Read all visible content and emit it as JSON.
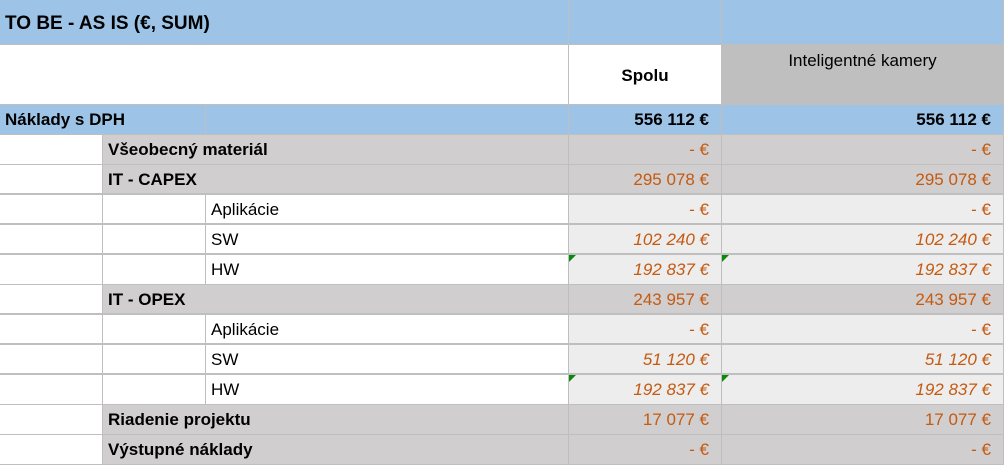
{
  "title": "TO BE - AS IS (€, SUM)",
  "headers": {
    "total": "Spolu",
    "col1": "Inteligentné kamery"
  },
  "colors": {
    "header_blue": "#9dc3e6",
    "group_gray": "#d0cece",
    "sub_gray": "#ededed",
    "value_orange": "#c55a11",
    "flag_green": "#0a8a0a"
  },
  "total_row": {
    "label": "Náklady s DPH",
    "total": "556 112 €",
    "col1": "556 112 €"
  },
  "rows": [
    {
      "level": 1,
      "label": "Všeobecný materiál",
      "total": "- €",
      "col1": "- €"
    },
    {
      "level": 1,
      "label": "IT - CAPEX",
      "total": "295 078 €",
      "col1": "295 078 €"
    },
    {
      "level": 2,
      "label": "Aplikácie",
      "total": "- €",
      "col1": "- €"
    },
    {
      "level": 2,
      "label": "SW",
      "total": "102 240 €",
      "col1": "102 240 €",
      "italic": true
    },
    {
      "level": 2,
      "label": "HW",
      "total": "192 837 €",
      "col1": "192 837 €",
      "italic": true,
      "flag": true
    },
    {
      "level": 1,
      "label": "IT - OPEX",
      "total": "243 957 €",
      "col1": "243 957 €"
    },
    {
      "level": 2,
      "label": "Aplikácie",
      "total": "- €",
      "col1": "- €"
    },
    {
      "level": 2,
      "label": "SW",
      "total": "51 120 €",
      "col1": "51 120 €",
      "italic": true
    },
    {
      "level": 2,
      "label": "HW",
      "total": "192 837 €",
      "col1": "192 837 €",
      "italic": true,
      "flag": true
    },
    {
      "level": 1,
      "label": "Riadenie projektu",
      "total": "17 077 €",
      "col1": "17 077 €"
    },
    {
      "level": 1,
      "label": "Výstupné náklady",
      "total": "- €",
      "col1": "- €"
    }
  ]
}
